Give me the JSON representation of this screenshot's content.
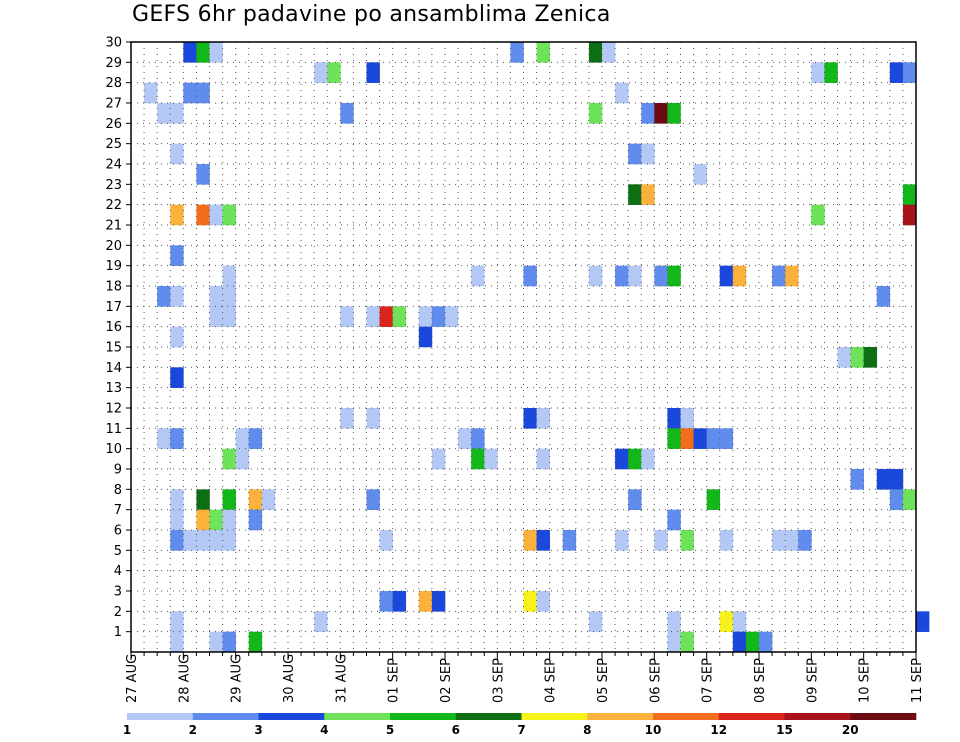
{
  "chart_data": {
    "type": "heatmap",
    "title": "GEFS 6hr padavine po ansamblima Zenica",
    "xlabel": "",
    "ylabel": "",
    "x_ticks": [
      "27 AUG",
      "28 AUG",
      "29 AUG",
      "30 AUG",
      "31 AUG",
      "01 SEP",
      "02 SEP",
      "03 SEP",
      "04 SEP",
      "05 SEP",
      "06 SEP",
      "07 SEP",
      "08 SEP",
      "09 SEP",
      "10 SEP",
      "11 SEP"
    ],
    "y_ticks": [
      1,
      2,
      3,
      4,
      5,
      6,
      7,
      8,
      9,
      10,
      11,
      12,
      13,
      14,
      15,
      16,
      17,
      18,
      19,
      20,
      21,
      22,
      23,
      24,
      25,
      26,
      27,
      28,
      29,
      30
    ],
    "x_range_steps": [
      0,
      60
    ],
    "y_range": [
      0,
      30
    ],
    "grid": true,
    "legend": {
      "position": "bottom",
      "boundaries": [
        "1",
        "2",
        "3",
        "4",
        "5",
        "6",
        "7",
        "8",
        "10",
        "12",
        "15",
        "20"
      ],
      "colors": [
        "#b4c8f5",
        "#5f8ced",
        "#1a48dc",
        "#6ee35a",
        "#12b71a",
        "#0e6e14",
        "#f6f21a",
        "#fbb23c",
        "#f06e1c",
        "#d9251a",
        "#a8121a",
        "#6e0a12"
      ]
    },
    "x_unit_note": "6-hour steps from 27 AUG 00Z",
    "cells": [
      {
        "member": 30,
        "step": 4,
        "level": 3
      },
      {
        "member": 30,
        "step": 5,
        "level": 5
      },
      {
        "member": 30,
        "step": 6,
        "level": 1
      },
      {
        "member": 30,
        "step": 29,
        "level": 2
      },
      {
        "member": 30,
        "step": 31,
        "level": 4
      },
      {
        "member": 30,
        "step": 35,
        "level": 6
      },
      {
        "member": 30,
        "step": 36,
        "level": 1
      },
      {
        "member": 29,
        "step": 14,
        "level": 1
      },
      {
        "member": 29,
        "step": 15,
        "level": 4
      },
      {
        "member": 29,
        "step": 18,
        "level": 3
      },
      {
        "member": 29,
        "step": 52,
        "level": 1
      },
      {
        "member": 29,
        "step": 53,
        "level": 5
      },
      {
        "member": 29,
        "step": 58,
        "level": 3
      },
      {
        "member": 29,
        "step": 59,
        "level": 2
      },
      {
        "member": 28,
        "step": 1,
        "level": 1
      },
      {
        "member": 28,
        "step": 4,
        "level": 2
      },
      {
        "member": 28,
        "step": 5,
        "level": 2
      },
      {
        "member": 28,
        "step": 37,
        "level": 1
      },
      {
        "member": 27,
        "step": 2,
        "level": 1
      },
      {
        "member": 27,
        "step": 3,
        "level": 1
      },
      {
        "member": 27,
        "step": 16,
        "level": 2
      },
      {
        "member": 27,
        "step": 35,
        "level": 4
      },
      {
        "member": 27,
        "step": 39,
        "level": 2
      },
      {
        "member": 27,
        "step": 40,
        "level": 12
      },
      {
        "member": 27,
        "step": 41,
        "level": 5
      },
      {
        "member": 25,
        "step": 3,
        "level": 1
      },
      {
        "member": 25,
        "step": 38,
        "level": 2
      },
      {
        "member": 25,
        "step": 39,
        "level": 1
      },
      {
        "member": 24,
        "step": 5,
        "level": 2
      },
      {
        "member": 24,
        "step": 43,
        "level": 1
      },
      {
        "member": 23,
        "step": 38,
        "level": 6
      },
      {
        "member": 23,
        "step": 39,
        "level": 8
      },
      {
        "member": 23,
        "step": 59,
        "level": 5
      },
      {
        "member": 22,
        "step": 3,
        "level": 8
      },
      {
        "member": 22,
        "step": 5,
        "level": 9
      },
      {
        "member": 22,
        "step": 6,
        "level": 1
      },
      {
        "member": 22,
        "step": 7,
        "level": 4
      },
      {
        "member": 22,
        "step": 52,
        "level": 4
      },
      {
        "member": 22,
        "step": 59,
        "level": 11
      },
      {
        "member": 20,
        "step": 3,
        "level": 2
      },
      {
        "member": 19,
        "step": 7,
        "level": 1
      },
      {
        "member": 19,
        "step": 26,
        "level": 1
      },
      {
        "member": 19,
        "step": 30,
        "level": 2
      },
      {
        "member": 19,
        "step": 35,
        "level": 1
      },
      {
        "member": 19,
        "step": 37,
        "level": 2
      },
      {
        "member": 19,
        "step": 38,
        "level": 1
      },
      {
        "member": 19,
        "step": 40,
        "level": 2
      },
      {
        "member": 19,
        "step": 41,
        "level": 5
      },
      {
        "member": 19,
        "step": 45,
        "level": 3
      },
      {
        "member": 19,
        "step": 46,
        "level": 8
      },
      {
        "member": 19,
        "step": 49,
        "level": 2
      },
      {
        "member": 19,
        "step": 50,
        "level": 8
      },
      {
        "member": 18,
        "step": 2,
        "level": 2
      },
      {
        "member": 18,
        "step": 3,
        "level": 1
      },
      {
        "member": 18,
        "step": 6,
        "level": 1
      },
      {
        "member": 18,
        "step": 7,
        "level": 1
      },
      {
        "member": 18,
        "step": 57,
        "level": 2
      },
      {
        "member": 17,
        "step": 6,
        "level": 1
      },
      {
        "member": 17,
        "step": 7,
        "level": 1
      },
      {
        "member": 17,
        "step": 16,
        "level": 1
      },
      {
        "member": 17,
        "step": 18,
        "level": 1
      },
      {
        "member": 17,
        "step": 19,
        "level": 10
      },
      {
        "member": 17,
        "step": 20,
        "level": 4
      },
      {
        "member": 17,
        "step": 22,
        "level": 1
      },
      {
        "member": 17,
        "step": 23,
        "level": 2
      },
      {
        "member": 17,
        "step": 24,
        "level": 1
      },
      {
        "member": 16,
        "step": 3,
        "level": 1
      },
      {
        "member": 16,
        "step": 22,
        "level": 3
      },
      {
        "member": 15,
        "step": 54,
        "level": 1
      },
      {
        "member": 15,
        "step": 55,
        "level": 4
      },
      {
        "member": 15,
        "step": 56,
        "level": 6
      },
      {
        "member": 14,
        "step": 3,
        "level": 3
      },
      {
        "member": 12,
        "step": 16,
        "level": 1
      },
      {
        "member": 12,
        "step": 18,
        "level": 1
      },
      {
        "member": 12,
        "step": 30,
        "level": 3
      },
      {
        "member": 12,
        "step": 31,
        "level": 1
      },
      {
        "member": 12,
        "step": 41,
        "level": 3
      },
      {
        "member": 12,
        "step": 42,
        "level": 1
      },
      {
        "member": 11,
        "step": 2,
        "level": 1
      },
      {
        "member": 11,
        "step": 3,
        "level": 2
      },
      {
        "member": 11,
        "step": 8,
        "level": 1
      },
      {
        "member": 11,
        "step": 9,
        "level": 2
      },
      {
        "member": 11,
        "step": 25,
        "level": 1
      },
      {
        "member": 11,
        "step": 26,
        "level": 2
      },
      {
        "member": 11,
        "step": 41,
        "level": 5
      },
      {
        "member": 11,
        "step": 42,
        "level": 9
      },
      {
        "member": 11,
        "step": 43,
        "level": 3
      },
      {
        "member": 11,
        "step": 44,
        "level": 2
      },
      {
        "member": 11,
        "step": 45,
        "level": 2
      },
      {
        "member": 10,
        "step": 7,
        "level": 4
      },
      {
        "member": 10,
        "step": 8,
        "level": 1
      },
      {
        "member": 10,
        "step": 23,
        "level": 1
      },
      {
        "member": 10,
        "step": 26,
        "level": 5
      },
      {
        "member": 10,
        "step": 27,
        "level": 1
      },
      {
        "member": 10,
        "step": 31,
        "level": 1
      },
      {
        "member": 10,
        "step": 37,
        "level": 3
      },
      {
        "member": 10,
        "step": 38,
        "level": 5
      },
      {
        "member": 10,
        "step": 39,
        "level": 1
      },
      {
        "member": 9,
        "step": 55,
        "level": 2
      },
      {
        "member": 9,
        "step": 57,
        "level": 3
      },
      {
        "member": 9,
        "step": 58,
        "level": 3
      },
      {
        "member": 8,
        "step": 3,
        "level": 1
      },
      {
        "member": 8,
        "step": 5,
        "level": 6
      },
      {
        "member": 8,
        "step": 7,
        "level": 5
      },
      {
        "member": 8,
        "step": 9,
        "level": 8
      },
      {
        "member": 8,
        "step": 10,
        "level": 1
      },
      {
        "member": 8,
        "step": 18,
        "level": 2
      },
      {
        "member": 8,
        "step": 38,
        "level": 2
      },
      {
        "member": 8,
        "step": 44,
        "level": 5
      },
      {
        "member": 8,
        "step": 58,
        "level": 2
      },
      {
        "member": 8,
        "step": 59,
        "level": 4
      },
      {
        "member": 7,
        "step": 3,
        "level": 1
      },
      {
        "member": 7,
        "step": 5,
        "level": 8
      },
      {
        "member": 7,
        "step": 6,
        "level": 4
      },
      {
        "member": 7,
        "step": 7,
        "level": 1
      },
      {
        "member": 7,
        "step": 9,
        "level": 2
      },
      {
        "member": 7,
        "step": 41,
        "level": 2
      },
      {
        "member": 6,
        "step": 3,
        "level": 2
      },
      {
        "member": 6,
        "step": 4,
        "level": 1
      },
      {
        "member": 6,
        "step": 5,
        "level": 1
      },
      {
        "member": 6,
        "step": 6,
        "level": 1
      },
      {
        "member": 6,
        "step": 7,
        "level": 1
      },
      {
        "member": 6,
        "step": 19,
        "level": 1
      },
      {
        "member": 6,
        "step": 30,
        "level": 8
      },
      {
        "member": 6,
        "step": 31,
        "level": 3
      },
      {
        "member": 6,
        "step": 33,
        "level": 2
      },
      {
        "member": 6,
        "step": 37,
        "level": 1
      },
      {
        "member": 6,
        "step": 40,
        "level": 1
      },
      {
        "member": 6,
        "step": 42,
        "level": 4
      },
      {
        "member": 6,
        "step": 45,
        "level": 1
      },
      {
        "member": 6,
        "step": 49,
        "level": 1
      },
      {
        "member": 6,
        "step": 50,
        "level": 1
      },
      {
        "member": 6,
        "step": 51,
        "level": 2
      },
      {
        "member": 3,
        "step": 19,
        "level": 2
      },
      {
        "member": 3,
        "step": 20,
        "level": 3
      },
      {
        "member": 3,
        "step": 22,
        "level": 8
      },
      {
        "member": 3,
        "step": 23,
        "level": 3
      },
      {
        "member": 3,
        "step": 30,
        "level": 7
      },
      {
        "member": 3,
        "step": 31,
        "level": 1
      },
      {
        "member": 2,
        "step": 3,
        "level": 1
      },
      {
        "member": 2,
        "step": 14,
        "level": 1
      },
      {
        "member": 2,
        "step": 35,
        "level": 1
      },
      {
        "member": 2,
        "step": 41,
        "level": 1
      },
      {
        "member": 2,
        "step": 45,
        "level": 7
      },
      {
        "member": 2,
        "step": 46,
        "level": 1
      },
      {
        "member": 2,
        "step": 60,
        "level": 3
      },
      {
        "member": 1,
        "step": 3,
        "level": 1
      },
      {
        "member": 1,
        "step": 6,
        "level": 1
      },
      {
        "member": 1,
        "step": 7,
        "level": 2
      },
      {
        "member": 1,
        "step": 9,
        "level": 5
      },
      {
        "member": 1,
        "step": 41,
        "level": 1
      },
      {
        "member": 1,
        "step": 42,
        "level": 4
      },
      {
        "member": 1,
        "step": 46,
        "level": 3
      },
      {
        "member": 1,
        "step": 47,
        "level": 5
      },
      {
        "member": 1,
        "step": 48,
        "level": 2
      }
    ]
  }
}
